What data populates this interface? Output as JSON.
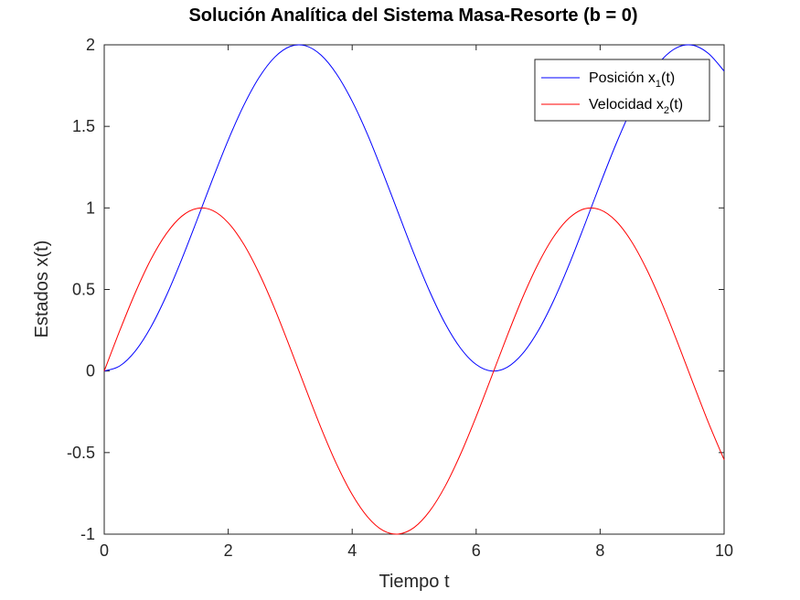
{
  "chart_data": {
    "type": "line",
    "title": "Solución Analítica del Sistema Masa-Resorte (b = 0)",
    "xlabel": "Tiempo t",
    "ylabel": "Estados x(t)",
    "xlim": [
      0,
      10
    ],
    "ylim": [
      -1,
      2
    ],
    "xticks": [
      0,
      2,
      4,
      6,
      8,
      10
    ],
    "xtick_labels": [
      "0",
      "2",
      "4",
      "6",
      "8",
      "10"
    ],
    "yticks": [
      -1,
      -0.5,
      0,
      0.5,
      1,
      1.5,
      2
    ],
    "ytick_labels": [
      "-1",
      "-0.5",
      "0",
      "0.5",
      "1",
      "1.5",
      "2"
    ],
    "grid": false,
    "legend_position": "top-right",
    "x": [
      0,
      0.25,
      0.5,
      0.75,
      1,
      1.25,
      1.5,
      1.75,
      2,
      2.25,
      2.5,
      2.75,
      3,
      3.25,
      3.5,
      3.75,
      4,
      4.25,
      4.5,
      4.75,
      5,
      5.25,
      5.5,
      5.75,
      6,
      6.25,
      6.5,
      6.75,
      7,
      7.25,
      7.5,
      7.75,
      8,
      8.25,
      8.5,
      8.75,
      9,
      9.25,
      9.5,
      9.75,
      10
    ],
    "series": [
      {
        "name_main": "Posición x",
        "name_sub": "1",
        "name_tail": "(t)",
        "color": "#0000ff",
        "values": [
          0,
          0.031,
          0.122,
          0.268,
          0.46,
          0.685,
          0.929,
          1.178,
          1.416,
          1.628,
          1.801,
          1.924,
          1.99,
          1.994,
          1.936,
          1.82,
          1.654,
          1.448,
          1.211,
          0.963,
          0.716,
          0.488,
          0.291,
          0.139,
          0.04,
          0.0,
          0.023,
          0.107,
          0.246,
          0.432,
          0.653,
          0.896,
          1.146,
          1.386,
          1.602,
          1.78,
          1.911,
          1.985,
          1.997,
          1.946,
          1.839
        ]
      },
      {
        "name_main": "Velocidad x",
        "name_sub": "2",
        "name_tail": "(t)",
        "color": "#ff0000",
        "values": [
          0,
          0.247,
          0.479,
          0.682,
          0.841,
          0.949,
          0.997,
          0.984,
          0.909,
          0.778,
          0.598,
          0.382,
          0.141,
          -0.108,
          -0.351,
          -0.572,
          -0.757,
          -0.895,
          -0.978,
          -0.999,
          -0.959,
          -0.859,
          -0.706,
          -0.508,
          -0.279,
          -0.033,
          0.215,
          0.451,
          0.657,
          0.823,
          0.938,
          0.995,
          0.989,
          0.922,
          0.798,
          0.624,
          0.412,
          0.174,
          -0.075,
          -0.319,
          -0.544
        ]
      }
    ]
  }
}
